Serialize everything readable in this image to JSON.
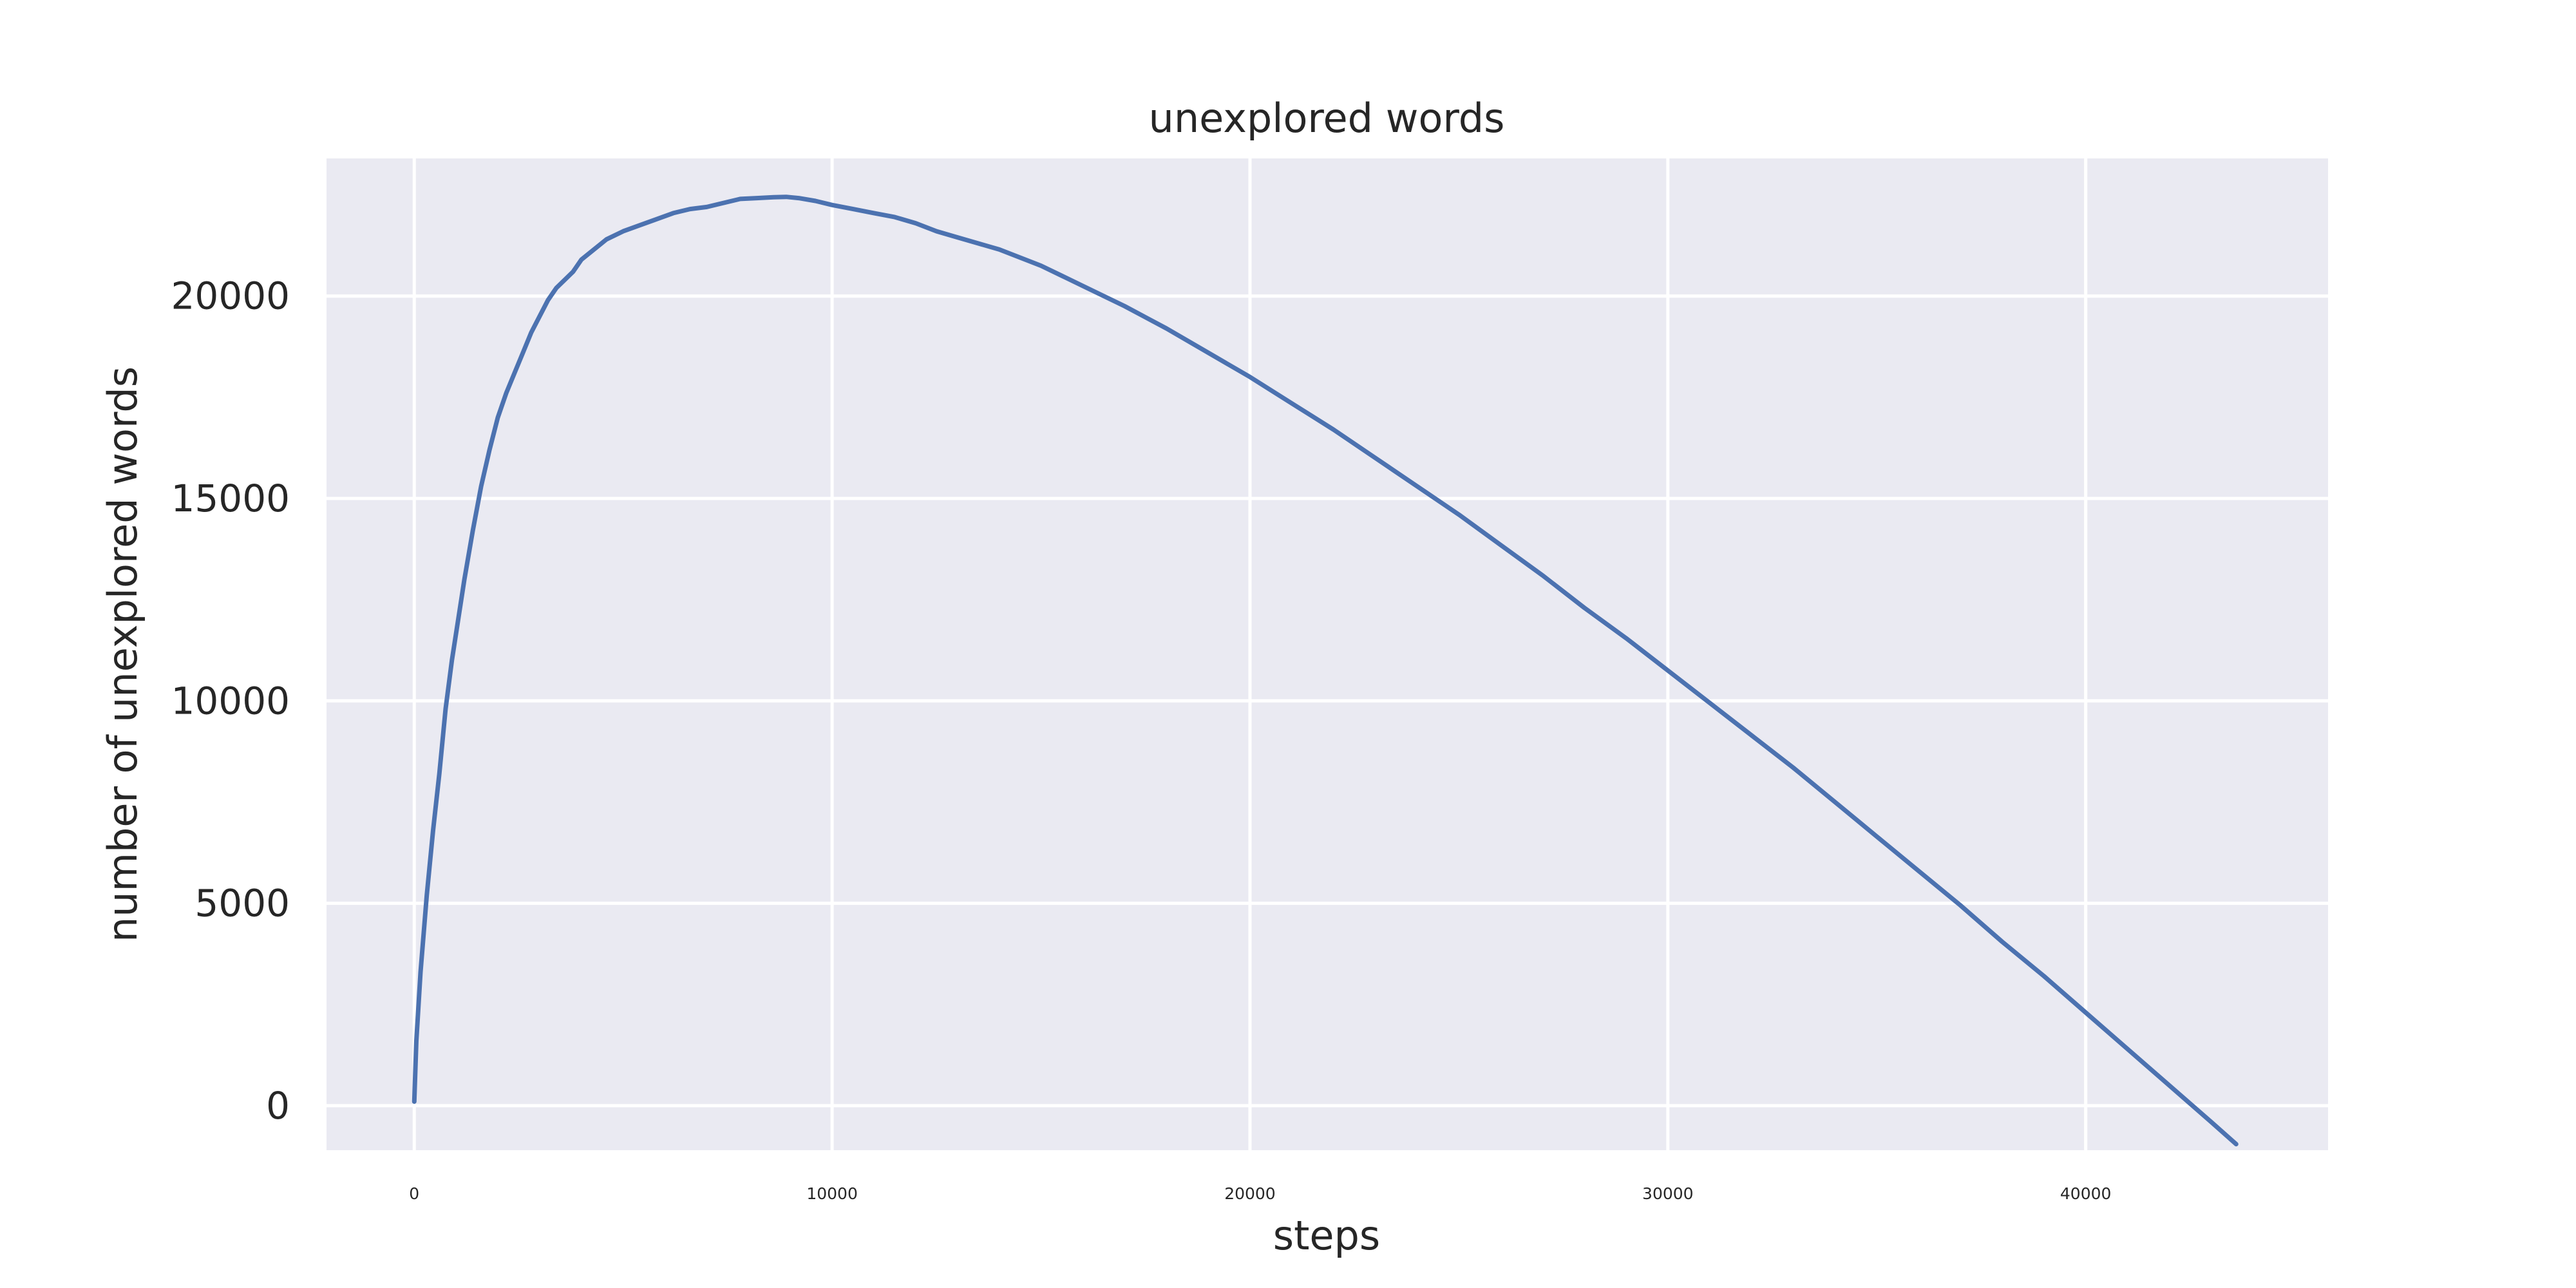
{
  "chart_data": {
    "type": "line",
    "title": "unexplored words",
    "xlabel": "steps",
    "ylabel": "number of unexplored words",
    "xlim": [
      -2100,
      45800
    ],
    "ylim": [
      -1100,
      23400
    ],
    "xticks": [
      0,
      10000,
      20000,
      30000,
      40000
    ],
    "yticks": [
      0,
      5000,
      10000,
      15000,
      20000
    ],
    "grid": true,
    "legend": "none",
    "colors": {
      "background": "#eaeaf2",
      "grid": "#ffffff",
      "line": "#4c72b0"
    },
    "series": [
      {
        "x": [
          0,
          50,
          150,
          300,
          450,
          600,
          750,
          900,
          1050,
          1200,
          1400,
          1600,
          1800,
          2000,
          2200,
          2400,
          2600,
          2800,
          3000,
          3200,
          3400,
          3600,
          3800,
          4000,
          4300,
          4600,
          5000,
          5400,
          5800,
          6200,
          6600,
          7000,
          7400,
          7800,
          8200,
          8600,
          8900,
          9200,
          9600,
          10000,
          10500,
          11000,
          11500,
          12000,
          12500,
          13000,
          13500,
          14000,
          14500,
          15000,
          15500,
          16000,
          17000,
          18000,
          19000,
          20000,
          21000,
          22000,
          23000,
          24000,
          25000,
          26000,
          27000,
          28000,
          29000,
          30000,
          31000,
          32000,
          33000,
          34000,
          35000,
          36000,
          37000,
          38000,
          39000,
          40000,
          41000,
          42000,
          43000,
          43600
        ],
        "y": [
          100,
          1600,
          3300,
          5200,
          6800,
          8200,
          9800,
          11000,
          12000,
          13000,
          14200,
          15300,
          16200,
          17000,
          17600,
          18100,
          18600,
          19100,
          19500,
          19900,
          20200,
          20400,
          20600,
          20900,
          21150,
          21400,
          21600,
          21750,
          21900,
          22050,
          22150,
          22200,
          22300,
          22400,
          22420,
          22440,
          22450,
          22420,
          22350,
          22250,
          22150,
          22050,
          21950,
          21800,
          21600,
          21450,
          21300,
          21150,
          20950,
          20750,
          20500,
          20250,
          19750,
          19200,
          18600,
          18000,
          17350,
          16700,
          16000,
          15300,
          14600,
          13850,
          13100,
          12300,
          11550,
          10750,
          9950,
          9150,
          8350,
          7500,
          6650,
          5800,
          4950,
          4050,
          3200,
          2300,
          1400,
          500,
          -400,
          -950
        ]
      }
    ]
  }
}
